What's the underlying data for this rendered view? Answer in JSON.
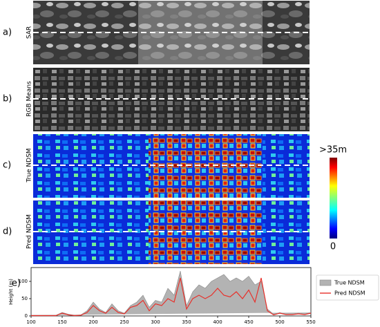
{
  "panels": [
    {
      "label": "a)",
      "name": "SAR"
    },
    {
      "label": "b)",
      "name": "RGB Means"
    },
    {
      "label": "c)",
      "name": "True NDSM"
    },
    {
      "label": "d)",
      "name": "Pred NDSM"
    }
  ],
  "colorbar": {
    "top_label": ">35m",
    "bottom_label": "0"
  },
  "chart_data": {
    "type": "line",
    "label": "e)",
    "y_label": "Height (m)",
    "x": [
      100,
      110,
      120,
      130,
      140,
      150,
      160,
      170,
      180,
      190,
      200,
      210,
      220,
      230,
      240,
      250,
      260,
      270,
      280,
      290,
      300,
      310,
      320,
      330,
      340,
      350,
      360,
      370,
      380,
      390,
      400,
      410,
      420,
      430,
      440,
      450,
      460,
      470,
      480,
      490,
      500,
      510,
      520,
      530,
      540,
      550
    ],
    "series": [
      {
        "name": "True NDSM",
        "color": "#b3b3b3",
        "fill": true,
        "values": [
          2,
          2,
          2,
          2,
          2,
          10,
          5,
          2,
          3,
          15,
          40,
          20,
          10,
          35,
          15,
          8,
          30,
          40,
          60,
          25,
          45,
          40,
          80,
          60,
          130,
          30,
          70,
          90,
          80,
          100,
          110,
          120,
          100,
          110,
          100,
          115,
          90,
          100,
          20,
          5,
          10,
          5,
          5,
          8,
          5,
          10
        ]
      },
      {
        "name": "Pred NDSM",
        "color": "#e8302a",
        "fill": false,
        "values": [
          1,
          1,
          1,
          1,
          1,
          8,
          3,
          1,
          2,
          10,
          30,
          15,
          8,
          25,
          10,
          6,
          25,
          30,
          45,
          15,
          35,
          30,
          50,
          40,
          110,
          20,
          50,
          60,
          50,
          60,
          80,
          60,
          55,
          70,
          50,
          75,
          40,
          110,
          15,
          3,
          8,
          4,
          4,
          6,
          4,
          8
        ]
      }
    ],
    "xlim": [
      100,
      550
    ],
    "ylim": [
      0,
      140
    ],
    "xticks": [
      100,
      150,
      200,
      250,
      300,
      350,
      400,
      450,
      500,
      550
    ],
    "yticks": [
      0,
      50,
      100
    ]
  }
}
